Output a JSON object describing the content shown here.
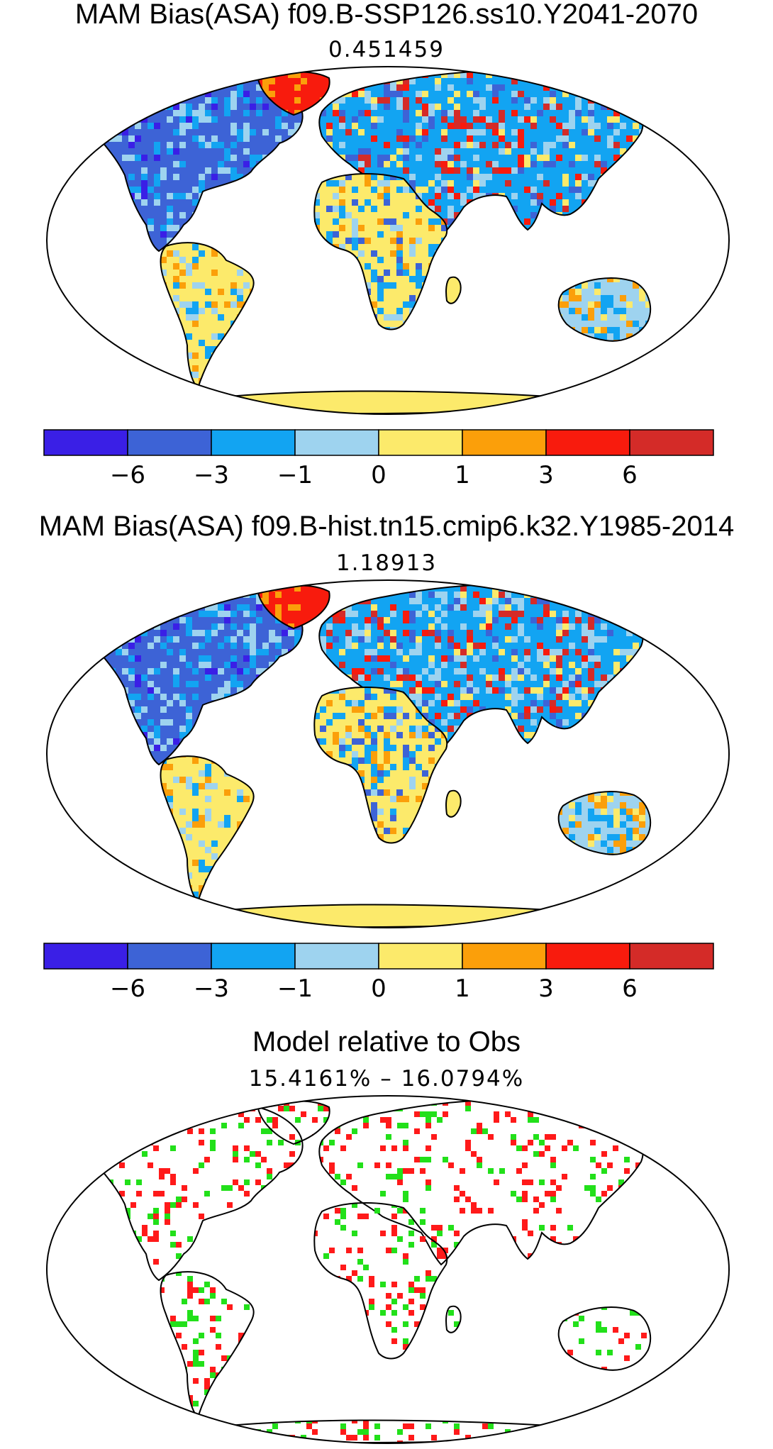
{
  "panels": [
    {
      "title": "MAM Bias(ASA) f09.B-SSP126.ss10.Y2041-2070",
      "subtitle": "0.451459",
      "seed": 11
    },
    {
      "title": "MAM Bias(ASA) f09.B-hist.tn15.cmip6.k32.Y1985-2014",
      "subtitle": "1.18913",
      "seed": 29
    },
    {
      "title": "Model relative to Obs",
      "subtitle": "15.4161% – 16.0794%",
      "seed": 53
    }
  ],
  "colorbar": {
    "colors": [
      "#3a1fe6",
      "#3d63d6",
      "#12a4f2",
      "#9ed3ef",
      "#fcea6b",
      "#fb9f0a",
      "#f81b0d",
      "#d42b28"
    ],
    "tick_labels": [
      "−6",
      "−3",
      "−1",
      "0",
      "1",
      "3",
      "6"
    ]
  },
  "relative_colors": [
    "#ff1a1a",
    "#22e01a"
  ]
}
